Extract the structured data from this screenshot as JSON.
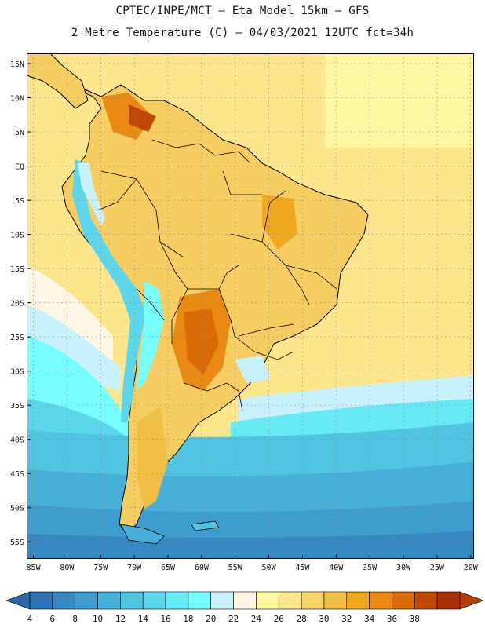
{
  "header": {
    "line1": "CPTEC/INPE/MCT –  Eta Model 15km – GFS",
    "line2": "2 Metre Temperature (C) – 04/03/2021 12UTC fct=34h"
  },
  "map": {
    "lat_labels": [
      "15N",
      "10N",
      "5N",
      "EQ",
      "5S",
      "10S",
      "15S",
      "20S",
      "25S",
      "30S",
      "35S",
      "40S",
      "45S",
      "50S",
      "55S"
    ],
    "lon_labels": [
      "85W",
      "80W",
      "75W",
      "70W",
      "65W",
      "60W",
      "55W",
      "50W",
      "45W",
      "40W",
      "35W",
      "30W",
      "25W",
      "20W"
    ],
    "lat_range": [
      -57.5,
      16.5
    ],
    "lon_range": [
      -86,
      -19.5
    ]
  },
  "colorbar": {
    "ticks": [
      "4",
      "6",
      "8",
      "10",
      "12",
      "14",
      "16",
      "18",
      "20",
      "22",
      "24",
      "26",
      "28",
      "30",
      "32",
      "34",
      "36",
      "38"
    ],
    "colors": [
      "#2e74b4",
      "#3688c2",
      "#3d9dcc",
      "#47b0d9",
      "#51c4e2",
      "#5bd6ea",
      "#66ebf4",
      "#76fdfd",
      "#c8f2fb",
      "#fef6e4",
      "#fef6a0",
      "#fce68c",
      "#f7d46a",
      "#f0bf46",
      "#f0a81e",
      "#e88a14",
      "#d96c06",
      "#c04806",
      "#a83004"
    ],
    "min_arrow_color": "#2a68a8",
    "max_arrow_color": "#b43c08"
  }
}
